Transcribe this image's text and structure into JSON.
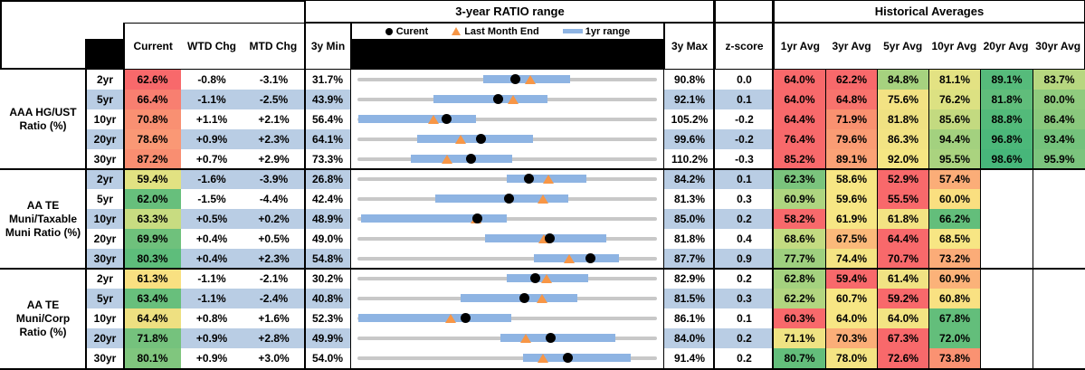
{
  "header": {
    "chart_title": "3-year RATIO range",
    "hist_title": "Historical Averages",
    "col_current": "Current",
    "col_wtd": "WTD Chg",
    "col_mtd": "MTD Chg",
    "col_min": "3y Min",
    "col_max": "3y Max",
    "col_z": "z-score",
    "avg_cols": [
      "1yr Avg",
      "3yr Avg",
      "5yr Avg",
      "10yr Avg",
      "20yr Avg",
      "30yr Avg"
    ],
    "legend": {
      "current": "Curent",
      "last_month": "Last Month End",
      "range": "1yr range"
    }
  },
  "colors": {
    "band_blue": "#B9CDE4",
    "track_gray": "#C8C8C8",
    "range_bar_blue": "#8EB4E3",
    "marker_black": "#000000",
    "marker_orange": "#F79646",
    "cf_red": "#F8696B",
    "cf_yellow": "#F7E684",
    "cf_green": "#63BE7B"
  },
  "groups": [
    {
      "label": "AAA HG/UST Ratio (%)",
      "rows": [
        {
          "tenor": "2yr",
          "current": {
            "v": "62.6%",
            "c": "#F8696B"
          },
          "wtd": "-0.8%",
          "mtd": "-3.1%",
          "min": "31.7%",
          "minv": 31.7,
          "bar": [
            56.5,
            73.5
          ],
          "dot": 62.6,
          "tri": 65.7,
          "max": "90.8%",
          "maxv": 90.8,
          "z": "0.0",
          "avgs": [
            {
              "v": "64.0%",
              "c": "#F8696B"
            },
            {
              "v": "62.2%",
              "c": "#F8696B"
            },
            {
              "v": "84.8%",
              "c": "#A6D27F"
            },
            {
              "v": "81.1%",
              "c": "#E3E283"
            },
            {
              "v": "89.1%",
              "c": "#56BB7B"
            },
            {
              "v": "83.7%",
              "c": "#B7D780"
            }
          ]
        },
        {
          "tenor": "5yr",
          "current": {
            "v": "66.4%",
            "c": "#F87F70"
          },
          "wtd": "-1.1%",
          "mtd": "-2.5%",
          "min": "43.9%",
          "minv": 43.9,
          "bar": [
            56.1,
            74.4
          ],
          "dot": 66.4,
          "tri": 68.9,
          "max": "92.1%",
          "maxv": 92.1,
          "z": "0.1",
          "avgs": [
            {
              "v": "64.0%",
              "c": "#F8696B"
            },
            {
              "v": "64.8%",
              "c": "#F8736D"
            },
            {
              "v": "75.6%",
              "c": "#F3E283"
            },
            {
              "v": "76.2%",
              "c": "#DCE182"
            },
            {
              "v": "81.8%",
              "c": "#60BD7B"
            },
            {
              "v": "80.0%",
              "c": "#90CB7E"
            }
          ]
        },
        {
          "tenor": "10yr",
          "current": {
            "v": "70.8%",
            "c": "#F99072"
          },
          "wtd": "+1.1%",
          "mtd": "+2.1%",
          "min": "56.4%",
          "minv": 56.4,
          "bar": [
            56.5,
            75.7
          ],
          "dot": 70.8,
          "tri": 68.7,
          "max": "105.2%",
          "maxv": 105.2,
          "z": "-0.2",
          "avgs": [
            {
              "v": "64.4%",
              "c": "#F8696B"
            },
            {
              "v": "71.9%",
              "c": "#F99170"
            },
            {
              "v": "81.8%",
              "c": "#EFE182"
            },
            {
              "v": "85.6%",
              "c": "#C3DA80"
            },
            {
              "v": "88.8%",
              "c": "#53BA7A"
            },
            {
              "v": "86.4%",
              "c": "#8AC87D"
            }
          ]
        },
        {
          "tenor": "20yr",
          "current": {
            "v": "78.6%",
            "c": "#FA9875"
          },
          "wtd": "+0.9%",
          "mtd": "+2.3%",
          "min": "64.1%",
          "minv": 64.1,
          "bar": [
            71.2,
            84.8
          ],
          "dot": 78.6,
          "tri": 76.3,
          "max": "99.6%",
          "maxv": 99.6,
          "z": "-0.2",
          "avgs": [
            {
              "v": "76.4%",
              "c": "#F8696B"
            },
            {
              "v": "79.6%",
              "c": "#FA9C74"
            },
            {
              "v": "86.3%",
              "c": "#F2E383"
            },
            {
              "v": "94.4%",
              "c": "#A3D17F"
            },
            {
              "v": "96.8%",
              "c": "#4CB87A"
            },
            {
              "v": "93.4%",
              "c": "#74C27C"
            }
          ]
        },
        {
          "tenor": "30yr",
          "current": {
            "v": "87.2%",
            "c": "#F98E71"
          },
          "wtd": "+0.7%",
          "mtd": "+2.9%",
          "min": "73.3%",
          "minv": 73.3,
          "bar": [
            79.9,
            92.3
          ],
          "dot": 87.2,
          "tri": 84.3,
          "max": "110.2%",
          "maxv": 110.2,
          "z": "-0.3",
          "avgs": [
            {
              "v": "85.2%",
              "c": "#F8696B"
            },
            {
              "v": "89.1%",
              "c": "#FBA276"
            },
            {
              "v": "92.0%",
              "c": "#F5E683"
            },
            {
              "v": "95.5%",
              "c": "#AAD37F"
            },
            {
              "v": "98.6%",
              "c": "#47B67A"
            },
            {
              "v": "95.9%",
              "c": "#7BC47D"
            }
          ]
        }
      ]
    },
    {
      "label": "AA TE Muni/Taxable Muni Ratio (%)",
      "rows": [
        {
          "tenor": "2yr",
          "current": {
            "v": "59.4%",
            "c": "#E2E282"
          },
          "wtd": "-1.6%",
          "mtd": "-3.9%",
          "min": "26.8%",
          "minv": 26.8,
          "bar": [
            55.4,
            70.6
          ],
          "dot": 59.4,
          "tri": 63.3,
          "max": "84.2%",
          "maxv": 84.2,
          "z": "0.1",
          "avgs": [
            {
              "v": "62.3%",
              "c": "#7AC47D"
            },
            {
              "v": "58.6%",
              "c": "#F7E684"
            },
            {
              "v": "52.9%",
              "c": "#F8696B"
            },
            {
              "v": "57.4%",
              "c": "#FBAD78"
            },
            null,
            null
          ]
        },
        {
          "tenor": "5yr",
          "current": {
            "v": "62.0%",
            "c": "#67BF7C"
          },
          "wtd": "-1.5%",
          "mtd": "-4.4%",
          "min": "42.4%",
          "minv": 42.4,
          "bar": [
            52.5,
            69.7
          ],
          "dot": 62.0,
          "tri": 66.4,
          "max": "81.3%",
          "maxv": 81.3,
          "z": "0.3",
          "avgs": [
            {
              "v": "60.9%",
              "c": "#AED580"
            },
            {
              "v": "59.6%",
              "c": "#F7E684"
            },
            {
              "v": "55.5%",
              "c": "#F8696B"
            },
            {
              "v": "60.0%",
              "c": "#FADF80"
            },
            null,
            null
          ]
        },
        {
          "tenor": "10yr",
          "current": {
            "v": "63.3%",
            "c": "#C8DC81"
          },
          "wtd": "+0.5%",
          "mtd": "+0.2%",
          "min": "48.9%",
          "minv": 48.9,
          "bar": [
            49.3,
            66.8
          ],
          "dot": 63.3,
          "tri": 63.1,
          "max": "85.0%",
          "maxv": 85.0,
          "z": "0.2",
          "avgs": [
            {
              "v": "58.2%",
              "c": "#F8696B"
            },
            {
              "v": "61.9%",
              "c": "#F7E684"
            },
            {
              "v": "61.8%",
              "c": "#F3E383"
            },
            {
              "v": "66.2%",
              "c": "#63BE7B"
            },
            null,
            null
          ]
        },
        {
          "tenor": "20yr",
          "current": {
            "v": "69.9%",
            "c": "#6FC17C"
          },
          "wtd": "+0.4%",
          "mtd": "+0.5%",
          "min": "49.0%",
          "minv": 49.0,
          "bar": [
            62.9,
            76.2
          ],
          "dot": 69.9,
          "tri": 69.4,
          "max": "81.8%",
          "maxv": 81.8,
          "z": "0.4",
          "avgs": [
            {
              "v": "68.6%",
              "c": "#C3DB81"
            },
            {
              "v": "67.5%",
              "c": "#FBB97A"
            },
            {
              "v": "64.4%",
              "c": "#F8696B"
            },
            {
              "v": "68.5%",
              "c": "#F7E684"
            },
            null,
            null
          ]
        },
        {
          "tenor": "30yr",
          "current": {
            "v": "80.3%",
            "c": "#5EBD7B"
          },
          "wtd": "+0.4%",
          "mtd": "+2.3%",
          "min": "54.8%",
          "minv": 54.8,
          "bar": [
            74.1,
            83.4
          ],
          "dot": 80.3,
          "tri": 78.0,
          "max": "87.7%",
          "maxv": 87.7,
          "z": "0.9",
          "avgs": [
            {
              "v": "77.7%",
              "c": "#9ED07F"
            },
            {
              "v": "74.4%",
              "c": "#F4E483"
            },
            {
              "v": "70.7%",
              "c": "#F8696B"
            },
            {
              "v": "73.2%",
              "c": "#FBAC78"
            },
            null,
            null
          ]
        }
      ]
    },
    {
      "label": "AA TE Muni/Corp Ratio (%)",
      "rows": [
        {
          "tenor": "2yr",
          "current": {
            "v": "61.3%",
            "c": "#F9E081"
          },
          "wtd": "-1.1%",
          "mtd": "-2.1%",
          "min": "30.2%",
          "minv": 30.2,
          "bar": [
            56.4,
            70.7
          ],
          "dot": 61.3,
          "tri": 63.4,
          "max": "82.9%",
          "maxv": 82.9,
          "z": "0.2",
          "avgs": [
            {
              "v": "62.8%",
              "c": "#A4D27F"
            },
            {
              "v": "59.4%",
              "c": "#F8696B"
            },
            {
              "v": "61.4%",
              "c": "#F1E383"
            },
            {
              "v": "60.9%",
              "c": "#FBB279"
            },
            null,
            null
          ]
        },
        {
          "tenor": "5yr",
          "current": {
            "v": "63.4%",
            "c": "#68BF7C"
          },
          "wtd": "-1.1%",
          "mtd": "-2.4%",
          "min": "40.8%",
          "minv": 40.8,
          "bar": [
            54.8,
            70.6
          ],
          "dot": 63.4,
          "tri": 65.8,
          "max": "81.5%",
          "maxv": 81.5,
          "z": "0.3",
          "avgs": [
            {
              "v": "62.2%",
              "c": "#B2D680"
            },
            {
              "v": "60.7%",
              "c": "#F7E684"
            },
            {
              "v": "59.2%",
              "c": "#F8696B"
            },
            {
              "v": "60.8%",
              "c": "#F9E182"
            },
            null,
            null
          ]
        },
        {
          "tenor": "10yr",
          "current": {
            "v": "64.4%",
            "c": "#EEE081"
          },
          "wtd": "+0.8%",
          "mtd": "+1.6%",
          "min": "52.3%",
          "minv": 52.3,
          "bar": [
            52.4,
            69.6
          ],
          "dot": 64.4,
          "tri": 62.8,
          "max": "86.1%",
          "maxv": 86.1,
          "z": "0.1",
          "avgs": [
            {
              "v": "60.3%",
              "c": "#F8696B"
            },
            {
              "v": "64.0%",
              "c": "#F7E684"
            },
            {
              "v": "64.0%",
              "c": "#F3E483"
            },
            {
              "v": "67.8%",
              "c": "#63BE7B"
            },
            null,
            null
          ]
        },
        {
          "tenor": "20yr",
          "current": {
            "v": "71.8%",
            "c": "#75C27D"
          },
          "wtd": "+0.9%",
          "mtd": "+2.8%",
          "min": "49.9%",
          "minv": 49.9,
          "bar": [
            66.1,
            79.2
          ],
          "dot": 71.8,
          "tri": 69.0,
          "max": "84.0%",
          "maxv": 84.0,
          "z": "0.2",
          "avgs": [
            {
              "v": "71.1%",
              "c": "#EFE383"
            },
            {
              "v": "70.3%",
              "c": "#FBAE78"
            },
            {
              "v": "67.3%",
              "c": "#F8696B"
            },
            {
              "v": "72.0%",
              "c": "#63BE7B"
            },
            null,
            null
          ]
        },
        {
          "tenor": "30yr",
          "current": {
            "v": "80.1%",
            "c": "#80C67E"
          },
          "wtd": "+0.9%",
          "mtd": "+3.0%",
          "min": "54.0%",
          "minv": 54.0,
          "bar": [
            74.6,
            88.0
          ],
          "dot": 80.1,
          "tri": 77.1,
          "max": "91.4%",
          "maxv": 91.4,
          "z": "0.2",
          "avgs": [
            {
              "v": "80.7%",
              "c": "#63BE7B"
            },
            {
              "v": "78.0%",
              "c": "#F4E483"
            },
            {
              "v": "72.6%",
              "c": "#F8696B"
            },
            {
              "v": "73.8%",
              "c": "#FA9272"
            },
            null,
            null
          ]
        }
      ]
    }
  ]
}
